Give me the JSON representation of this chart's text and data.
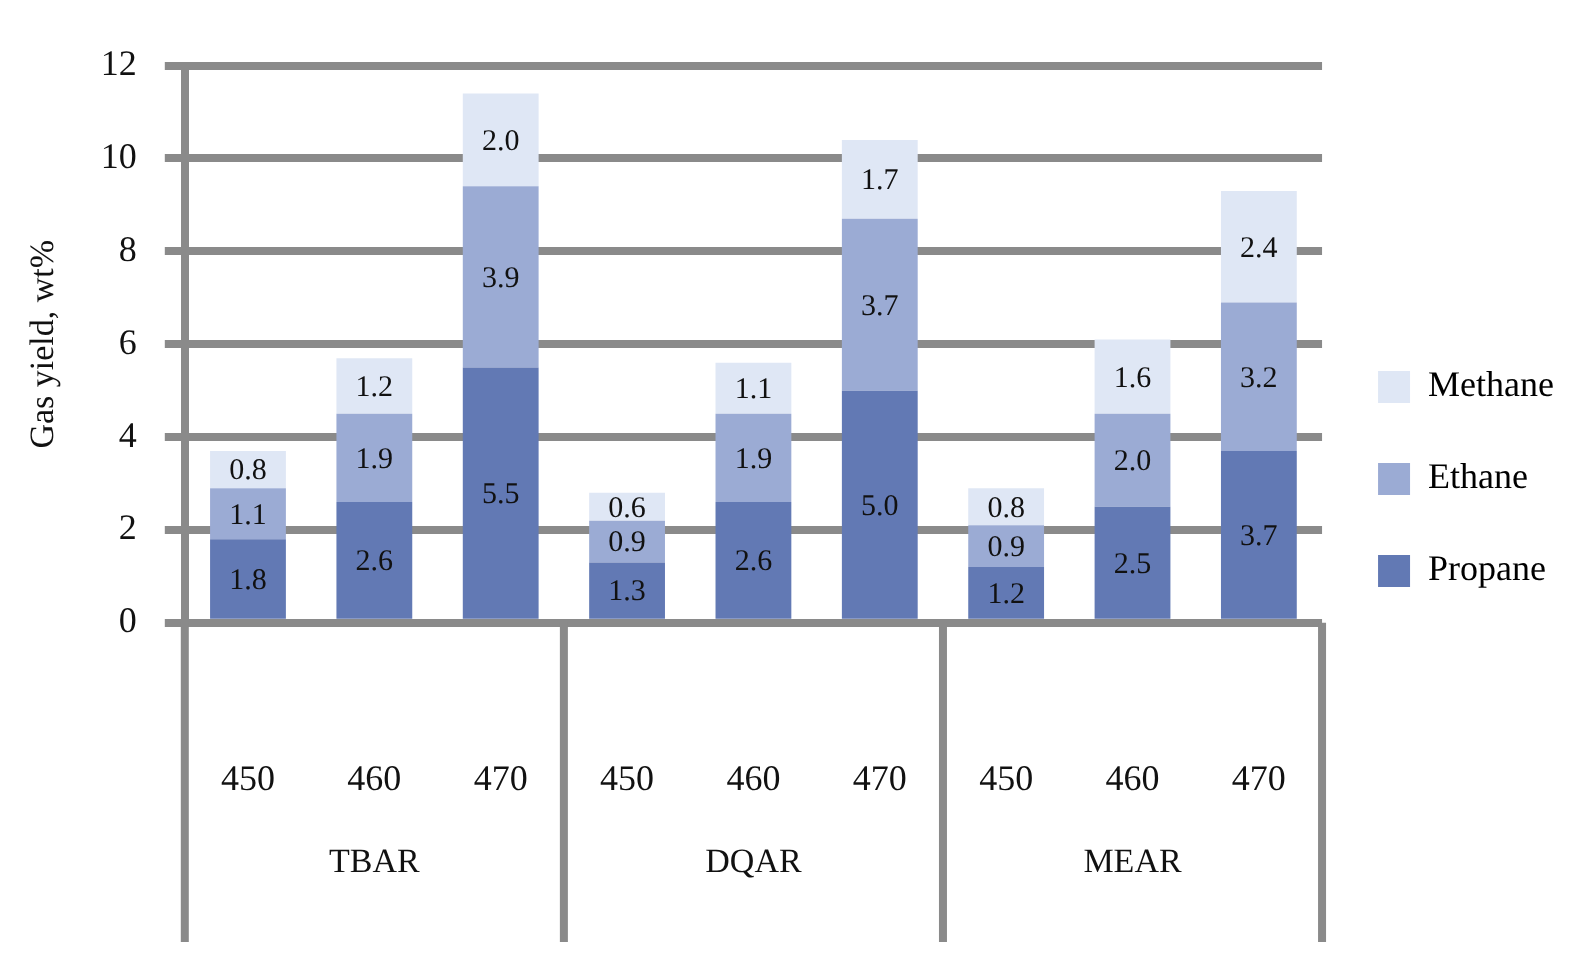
{
  "chart_data": {
    "type": "bar",
    "stacked": true,
    "ylabel": "Gas yield, wt%",
    "categories": [
      "450",
      "460",
      "470",
      "450",
      "460",
      "470",
      "450",
      "460",
      "470"
    ],
    "series": [
      {
        "name": "Propane",
        "color": "#6279b4",
        "values": [
          1.8,
          2.6,
          5.5,
          1.3,
          2.6,
          5.0,
          1.2,
          2.5,
          3.7
        ],
        "value_labels": [
          "1.8",
          "2.6",
          "5.5",
          "1.3",
          "2.6",
          "5.0",
          "1.2",
          "2.5",
          "3.7"
        ]
      },
      {
        "name": "Ethane",
        "color": "#9babd4",
        "values": [
          1.1,
          1.9,
          3.9,
          0.9,
          1.9,
          3.7,
          0.9,
          2.0,
          3.2
        ],
        "value_labels": [
          "1.1",
          "1.9",
          "3.9",
          "0.9",
          "1.9",
          "3.7",
          "0.9",
          "2.0",
          "3.2"
        ]
      },
      {
        "name": "Methane",
        "color": "#dfe7f5",
        "values": [
          0.8,
          1.2,
          2.0,
          0.6,
          1.1,
          1.7,
          0.8,
          1.6,
          2.4
        ],
        "value_labels": [
          "0.8",
          "1.2",
          "2.0",
          "0.6",
          "1.1",
          "1.7",
          "0.8",
          "1.6",
          "2.4"
        ]
      }
    ],
    "annotations": [
      "TBAR",
      "DQAR",
      "MEAR"
    ],
    "ylim": [
      0,
      12
    ],
    "yticks": [
      0,
      2,
      4,
      6,
      8,
      10,
      12
    ],
    "grid": "y",
    "legend": "right"
  }
}
